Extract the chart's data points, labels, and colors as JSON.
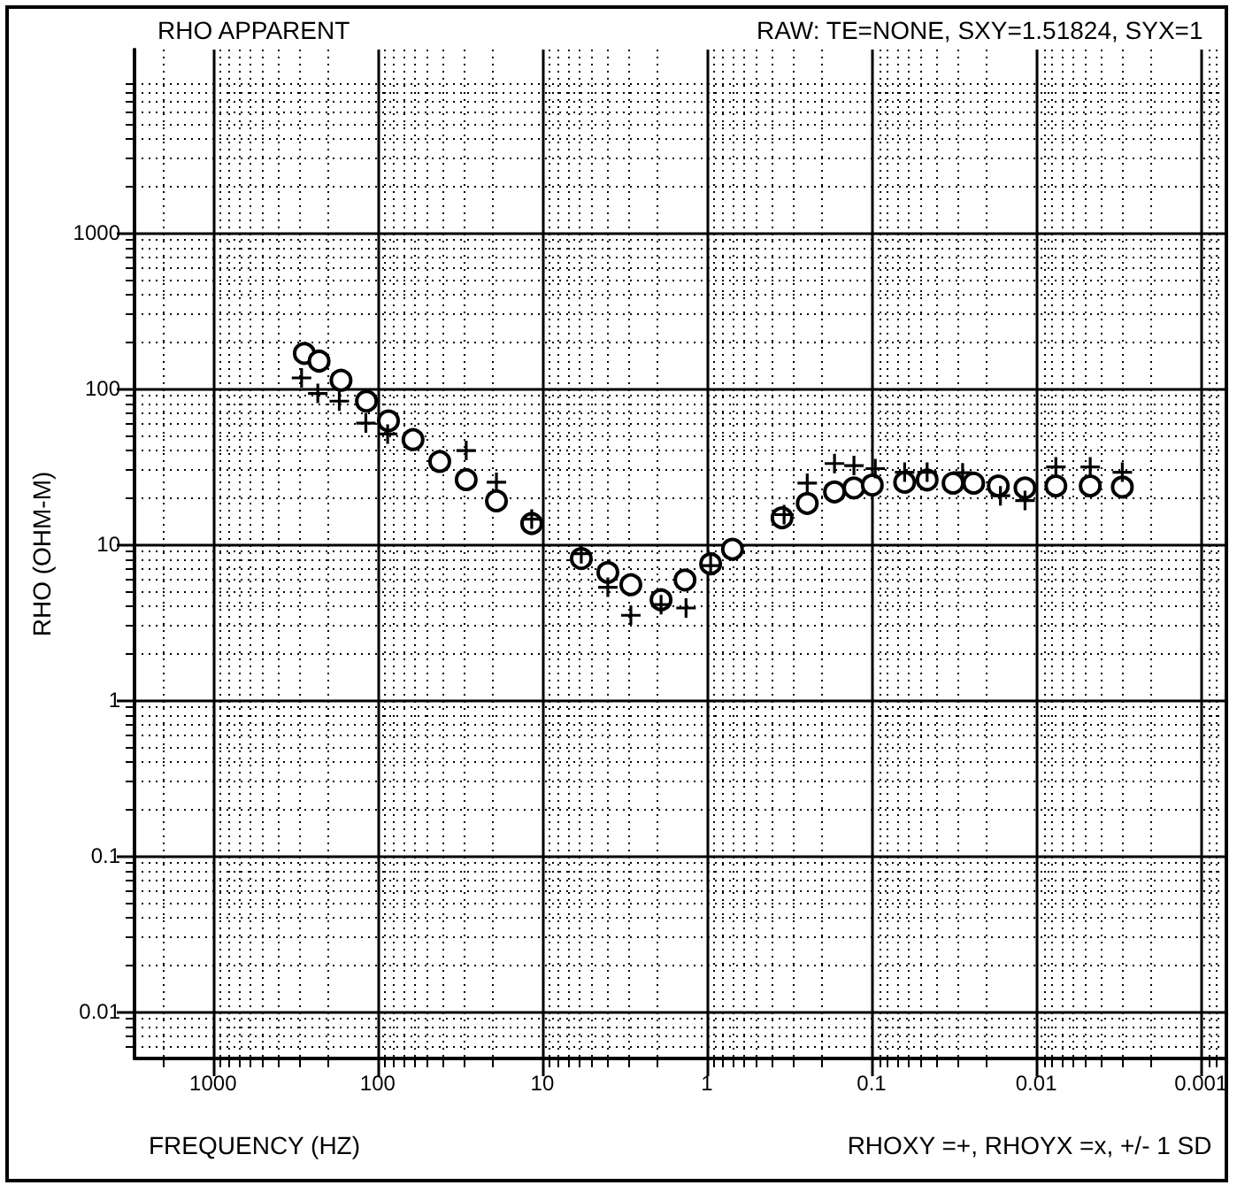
{
  "chart_data": {
    "type": "scatter",
    "title": "RHO APPARENT",
    "subtitle": "RAW: TE=NONE, SXY=1.51824, SYX=1",
    "xlabel": "FREQUENCY (HZ)",
    "ylabel": "RHO (OHM-M)",
    "annotations": [
      "RHOXY =+, RHOYX =x, +/- 1 SD"
    ],
    "log": "xy",
    "grid": true,
    "xlim": [
      3000,
      0.0007
    ],
    "xticks": [
      1000,
      100,
      10,
      1,
      0.1,
      0.01,
      0.001
    ],
    "ylim": [
      0.005,
      15000
    ],
    "yticks": [
      0.01,
      0.1,
      1,
      10,
      100,
      1000
    ],
    "series": [
      {
        "color": "#000000",
        "marker": "cross",
        "x": [
          290,
          231,
          171,
          118,
          87,
          29,
          19,
          11.6,
          5.8,
          4.0,
          2.9,
          1.9,
          1.34,
          0.95,
          0.34,
          0.246,
          0.168,
          0.128,
          0.095,
          0.063,
          0.046,
          0.028,
          0.0165,
          0.0117,
          0.0076,
          0.0047,
          0.003
        ],
        "values": [
          117,
          93,
          83,
          60,
          51,
          40,
          25,
          14.5,
          8.7,
          5.3,
          3.5,
          4.1,
          3.9,
          7.3,
          15.5,
          24.7,
          33,
          32,
          30.6,
          29,
          29,
          28.8,
          20.5,
          19.1,
          31.4,
          31.4,
          29
        ]
      },
      {
        "color": "#000000",
        "marker": "circle",
        "x": [
          279,
          227,
          167,
          117,
          86,
          61,
          42,
          29,
          19,
          11.6,
          5.8,
          4.0,
          2.9,
          1.9,
          1.36,
          0.95,
          0.7,
          0.35,
          0.246,
          0.168,
          0.128,
          0.099,
          0.063,
          0.046,
          0.032,
          0.024,
          0.017,
          0.0117,
          0.0076,
          0.0047,
          0.003
        ],
        "values": [
          168,
          150,
          113,
          83,
          62,
          47,
          34,
          26,
          19,
          13.6,
          8.1,
          6.6,
          5.5,
          4.4,
          5.9,
          7.5,
          9.3,
          14.8,
          18.3,
          21.7,
          23,
          24,
          25,
          25.9,
          24.7,
          24.7,
          23.7,
          23,
          23.7,
          23.7,
          23.3
        ]
      }
    ]
  }
}
